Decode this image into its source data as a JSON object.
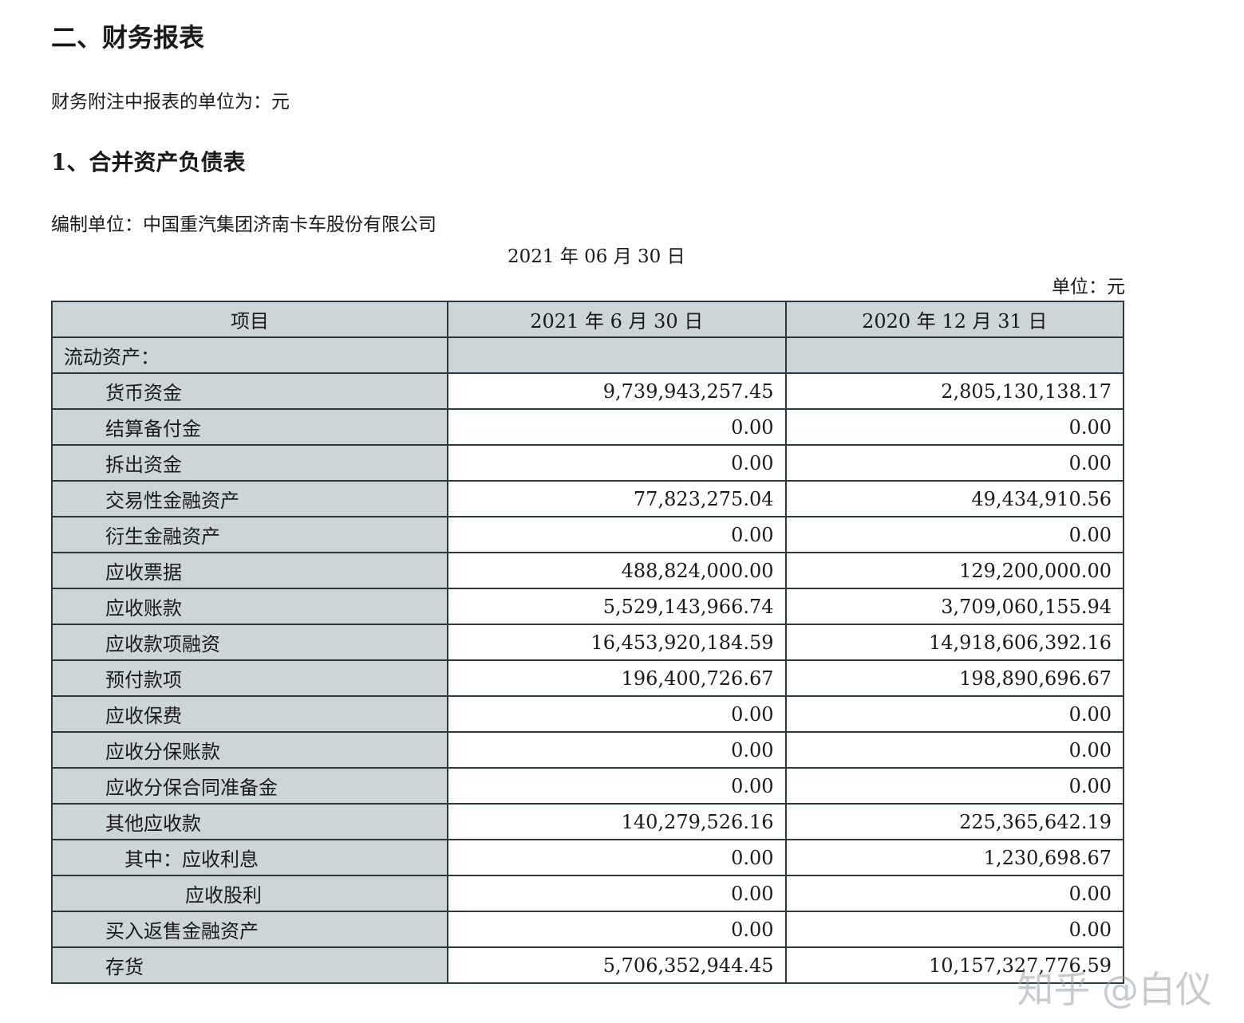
{
  "heading": "二、财务报表",
  "unit_note": "财务附注中报表的单位为：元",
  "subheading": "1、合并资产负债表",
  "preparer": "编制单位：中国重汽集团济南卡车股份有限公司",
  "report_date": "2021 年 06 月 30 日",
  "unit": "单位：元",
  "table": {
    "headers": [
      "项目",
      "2021 年 6 月 30 日",
      "2020 年 12 月 31 日"
    ],
    "section": "流动资产：",
    "rows": [
      {
        "item": "货币资金",
        "indent": 1,
        "a": "9,739,943,257.45",
        "b": "2,805,130,138.17"
      },
      {
        "item": "结算备付金",
        "indent": 1,
        "a": "0.00",
        "b": "0.00"
      },
      {
        "item": "拆出资金",
        "indent": 1,
        "a": "0.00",
        "b": "0.00"
      },
      {
        "item": "交易性金融资产",
        "indent": 1,
        "a": "77,823,275.04",
        "b": "49,434,910.56"
      },
      {
        "item": "衍生金融资产",
        "indent": 1,
        "a": "0.00",
        "b": "0.00"
      },
      {
        "item": "应收票据",
        "indent": 1,
        "a": "488,824,000.00",
        "b": "129,200,000.00"
      },
      {
        "item": "应收账款",
        "indent": 1,
        "a": "5,529,143,966.74",
        "b": "3,709,060,155.94"
      },
      {
        "item": "应收款项融资",
        "indent": 1,
        "a": "16,453,920,184.59",
        "b": "14,918,606,392.16"
      },
      {
        "item": "预付款项",
        "indent": 1,
        "a": "196,400,726.67",
        "b": "198,890,696.67"
      },
      {
        "item": "应收保费",
        "indent": 1,
        "a": "0.00",
        "b": "0.00"
      },
      {
        "item": "应收分保账款",
        "indent": 1,
        "a": "0.00",
        "b": "0.00"
      },
      {
        "item": "应收分保合同准备金",
        "indent": 1,
        "a": "0.00",
        "b": "0.00"
      },
      {
        "item": "其他应收款",
        "indent": 1,
        "a": "140,279,526.16",
        "b": "225,365,642.19"
      },
      {
        "item": "其中：应收利息",
        "indent": 2,
        "a": "0.00",
        "b": "1,230,698.67"
      },
      {
        "item": "应收股利",
        "indent": 3,
        "a": "0.00",
        "b": "0.00"
      },
      {
        "item": "买入返售金融资产",
        "indent": 1,
        "a": "0.00",
        "b": "0.00"
      },
      {
        "item": "存货",
        "indent": 1,
        "a": "5,706,352,944.45",
        "b": "10,157,327,776.59"
      }
    ]
  },
  "watermark": "知乎 @白仪"
}
